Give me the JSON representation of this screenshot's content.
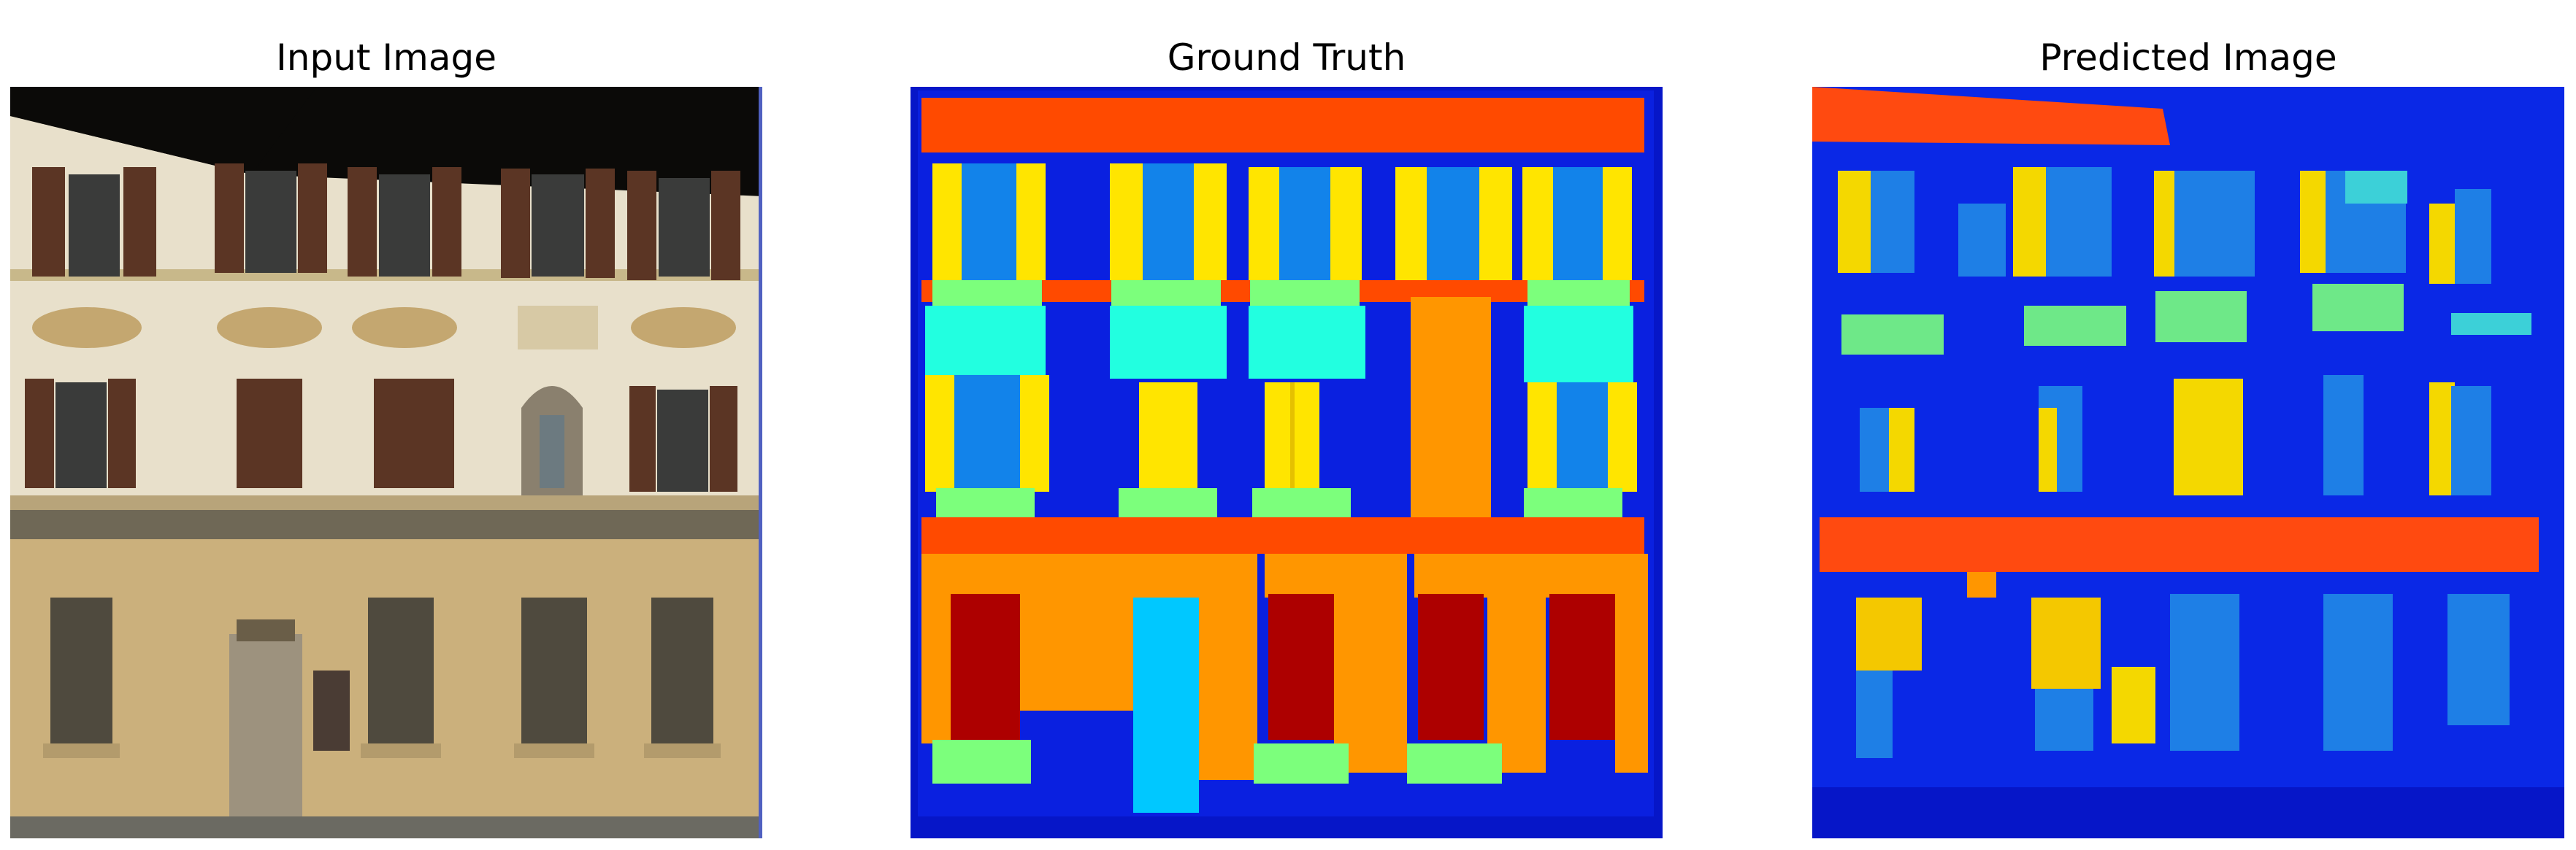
{
  "panels": [
    {
      "title": "Input Image",
      "content": "photograph of a building facade with windows, shutters and storefronts"
    },
    {
      "title": "Ground Truth",
      "content": "facade segmentation label map"
    },
    {
      "title": "Predicted Image",
      "content": "predicted facade segmentation label map"
    }
  ],
  "colors": {
    "background_blue": "#0a20e0",
    "frame_blue": "#0616c8",
    "cornice_orange_red": "#ff4a00",
    "window_yellow": "#ffe500",
    "window_light_blue": "#1283ea",
    "sill_green": "#7cff7c",
    "balcony_cyan": "#22ffe0",
    "door_orange": "#ff9600",
    "shop_dark_red": "#ad0000",
    "shop_sky_blue": "#00c8ff",
    "facade_photo_cream": "#e6dcc6",
    "facade_photo_tan": "#c9b080",
    "shutter_brown": "#5b3524"
  }
}
